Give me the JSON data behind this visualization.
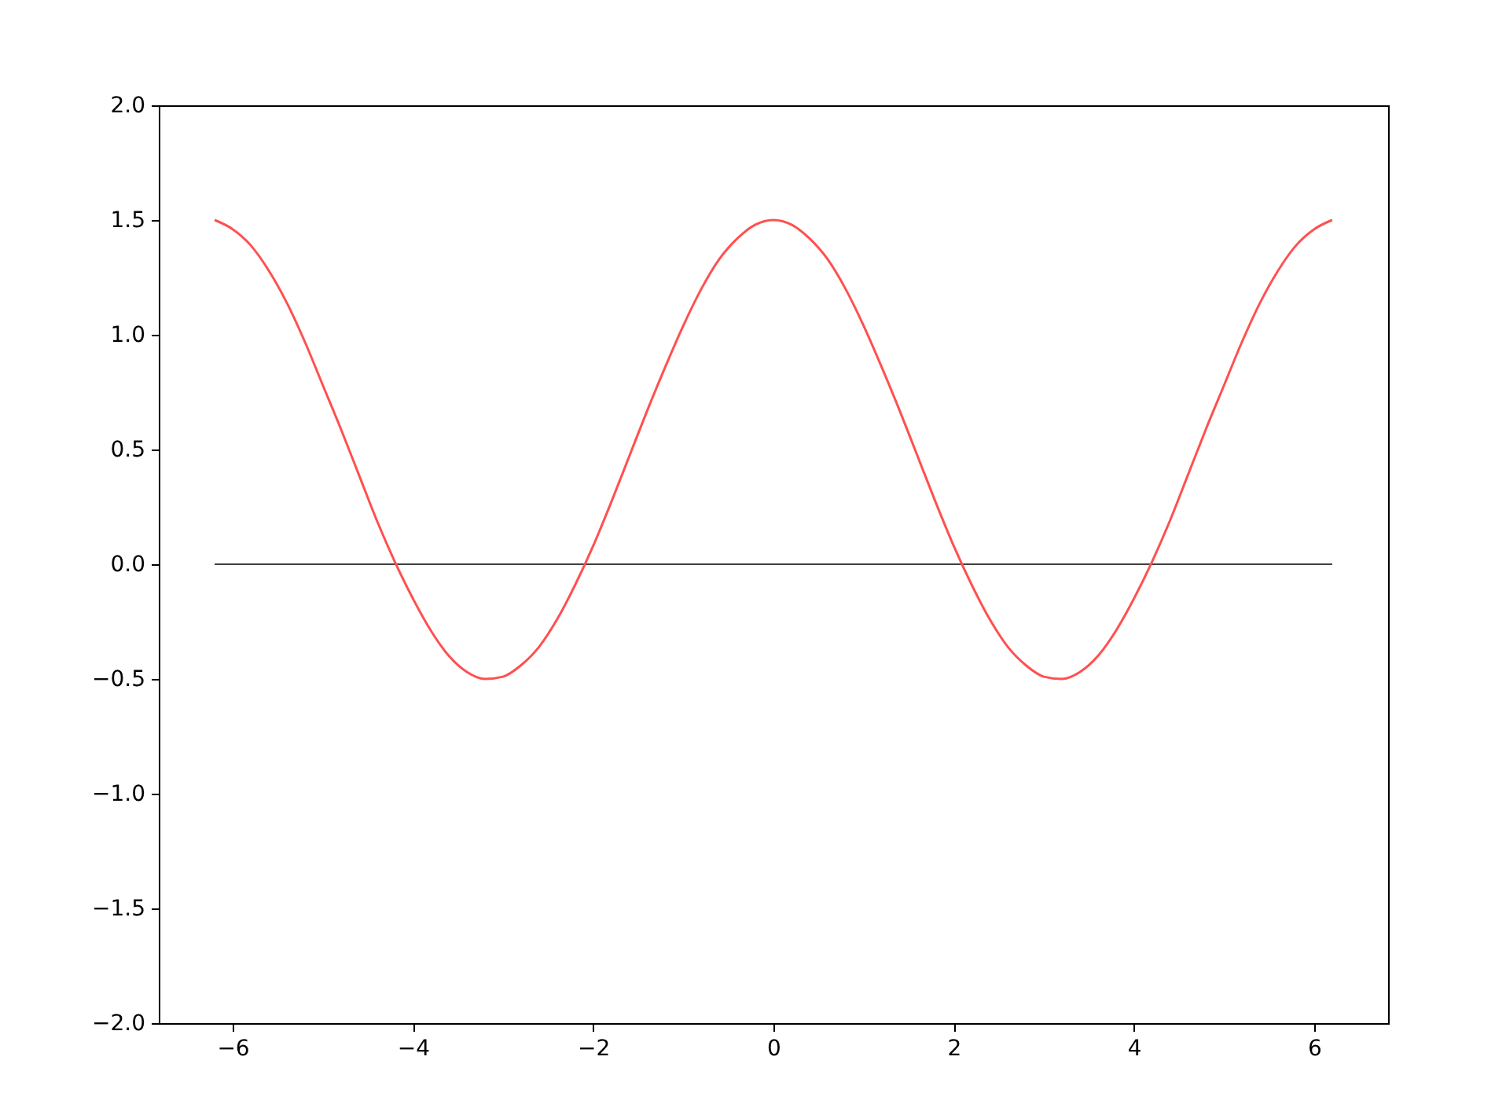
{
  "chart_data": {
    "type": "line",
    "xlim": [
      -6.82,
      6.82
    ],
    "ylim": [
      -2,
      2
    ],
    "xticks": [
      {
        "value": -6,
        "label": "−6"
      },
      {
        "value": -4,
        "label": "−4"
      },
      {
        "value": -2,
        "label": "−2"
      },
      {
        "value": 0,
        "label": "0"
      },
      {
        "value": 2,
        "label": "2"
      },
      {
        "value": 4,
        "label": "4"
      },
      {
        "value": 6,
        "label": "6"
      }
    ],
    "yticks": [
      {
        "value": -2,
        "label": "−2.0"
      },
      {
        "value": -1.5,
        "label": "−1.5"
      },
      {
        "value": -1,
        "label": "−1.0"
      },
      {
        "value": -0.5,
        "label": "−0.5"
      },
      {
        "value": 0,
        "label": "0.0"
      },
      {
        "value": 0.5,
        "label": "0.5"
      },
      {
        "value": 1,
        "label": "1.0"
      },
      {
        "value": 1.5,
        "label": "1.5"
      },
      {
        "value": 2,
        "label": "2.0"
      }
    ],
    "grid": false,
    "series": [
      {
        "color": "#000000",
        "x": [
          -6.2,
          6.2
        ],
        "values": [
          0,
          0
        ]
      },
      {
        "color": "#ff5050",
        "x": [
          -6.2,
          -6.0,
          -5.8,
          -5.6,
          -5.4,
          -5.2,
          -5.0,
          -4.8,
          -4.6,
          -4.4,
          -4.2,
          -4.0,
          -3.8,
          -3.6,
          -3.4,
          -3.2,
          -3.0,
          -2.8,
          -2.6,
          -2.4,
          -2.2,
          -2.0,
          -1.8,
          -1.6,
          -1.4,
          -1.2,
          -1.0,
          -0.8,
          -0.6,
          -0.4,
          -0.2,
          0,
          0.2,
          0.4,
          0.6,
          0.8,
          1.0,
          1.2,
          1.4,
          1.6,
          1.8,
          2.0,
          2.2,
          2.4,
          2.6,
          2.8,
          3.0,
          3.2,
          3.4,
          3.6,
          3.8,
          4.0,
          4.2,
          4.4,
          4.6,
          4.8,
          5.0,
          5.2,
          5.4,
          5.6,
          5.8,
          6.0,
          6.2
        ],
        "values": [
          1.5,
          1.46,
          1.39,
          1.28,
          1.14,
          0.97,
          0.78,
          0.59,
          0.39,
          0.19,
          0.01,
          -0.15,
          -0.29,
          -0.4,
          -0.47,
          -0.5,
          -0.49,
          -0.44,
          -0.36,
          -0.24,
          -0.09,
          0.08,
          0.27,
          0.47,
          0.67,
          0.86,
          1.04,
          1.2,
          1.33,
          1.42,
          1.48,
          1.5,
          1.48,
          1.42,
          1.33,
          1.2,
          1.04,
          0.86,
          0.67,
          0.47,
          0.27,
          0.08,
          -0.09,
          -0.24,
          -0.36,
          -0.44,
          -0.49,
          -0.5,
          -0.47,
          -0.4,
          -0.29,
          -0.15,
          0.01,
          0.19,
          0.39,
          0.59,
          0.78,
          0.97,
          1.14,
          1.28,
          1.39,
          1.46,
          1.5
        ]
      }
    ]
  }
}
